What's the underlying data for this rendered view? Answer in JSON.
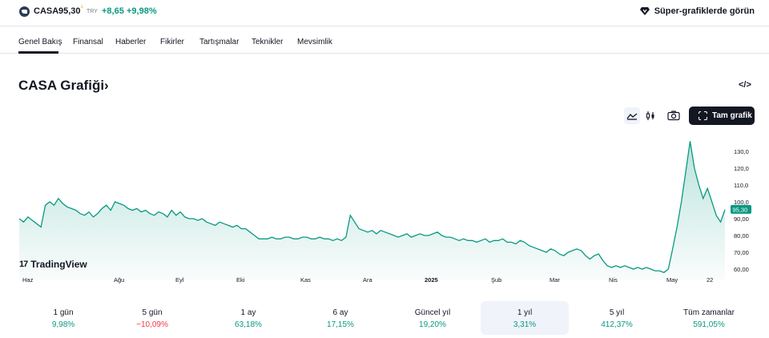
{
  "header": {
    "symbol": "CASA",
    "price": "95,30",
    "price_sup": "c",
    "currency": "TRY",
    "change": "+8,65",
    "change_pct": "+9,98%",
    "super_charts_label": "Süper-grafiklerde görün"
  },
  "tabs": [
    {
      "label": "Genel Bakış"
    },
    {
      "label": "Finansal"
    },
    {
      "label": "Haberler"
    },
    {
      "label": "Fikirler"
    },
    {
      "label": "Tartışmalar"
    },
    {
      "label": "Teknikler"
    },
    {
      "label": "Mevsimlik"
    }
  ],
  "chart_header": {
    "title": "CASA Grafiği",
    "title_chevron": "›",
    "embed_label": "</>",
    "full_chart_label": "Tam grafik"
  },
  "branding": {
    "tradingview": "TradingView",
    "mark": "17"
  },
  "colors": {
    "positive": "#089981",
    "negative": "#f23645",
    "area_line": "#089981"
  },
  "chart_data": {
    "type": "area",
    "title": "",
    "xlabel": "",
    "ylabel": "",
    "x_ticks": [
      "Haz",
      "Ağu",
      "Eyl",
      "Eki",
      "Kas",
      "Ara",
      "2025",
      "Şub",
      "Mar",
      "Nis",
      "May",
      "22"
    ],
    "y_ticks": [
      "60,00",
      "70,00",
      "80,00",
      "90,00",
      "100,0",
      "110,0",
      "120,0",
      "130,0"
    ],
    "ylim": [
      57,
      137
    ],
    "last_price_label": "95,30",
    "series": [
      {
        "values": [
          90,
          88,
          91,
          89,
          87,
          85,
          98,
          100,
          98,
          102,
          99,
          97,
          96,
          95,
          93,
          92,
          94,
          91,
          93,
          96,
          98,
          95,
          100,
          99,
          98,
          96,
          95,
          96,
          94,
          95,
          93,
          92,
          94,
          93,
          91,
          95,
          92,
          94,
          91,
          90,
          90,
          89,
          90,
          88,
          87,
          86,
          88,
          87,
          86,
          85,
          86,
          84,
          84,
          82,
          80,
          78,
          78,
          78,
          79,
          78,
          78,
          79,
          79,
          78,
          78,
          79,
          79,
          78,
          78,
          79,
          78,
          78,
          77,
          78,
          77,
          79,
          92,
          88,
          84,
          83,
          82,
          83,
          81,
          83,
          82,
          81,
          80,
          79,
          80,
          81,
          79,
          80,
          81,
          80,
          80,
          81,
          82,
          80,
          79,
          79,
          78,
          77,
          78,
          77,
          77,
          76,
          77,
          78,
          76,
          77,
          77,
          78,
          76,
          76,
          75,
          77,
          76,
          74,
          73,
          72,
          71,
          70,
          72,
          71,
          69,
          68,
          70,
          71,
          72,
          71,
          68,
          66,
          68,
          69,
          65,
          62,
          61,
          62,
          61,
          62,
          61,
          60,
          61,
          60,
          61,
          60,
          59,
          59,
          58,
          60,
          72,
          85,
          100,
          118,
          136,
          120,
          110,
          102,
          108,
          100,
          92,
          88,
          95.3
        ]
      }
    ]
  },
  "periods": [
    {
      "label": "1 gün",
      "value": "9,98%",
      "sign": "pos"
    },
    {
      "label": "5 gün",
      "value": "−10,09%",
      "sign": "neg"
    },
    {
      "label": "1 ay",
      "value": "63,18%",
      "sign": "pos"
    },
    {
      "label": "6 ay",
      "value": "17,15%",
      "sign": "pos"
    },
    {
      "label": "Güncel yıl",
      "value": "19,20%",
      "sign": "pos"
    },
    {
      "label": "1 yıl",
      "value": "3,31%",
      "sign": "pos",
      "selected": true
    },
    {
      "label": "5 yıl",
      "value": "412,37%",
      "sign": "pos"
    },
    {
      "label": "Tüm zamanlar",
      "value": "591,05%",
      "sign": "pos"
    }
  ]
}
